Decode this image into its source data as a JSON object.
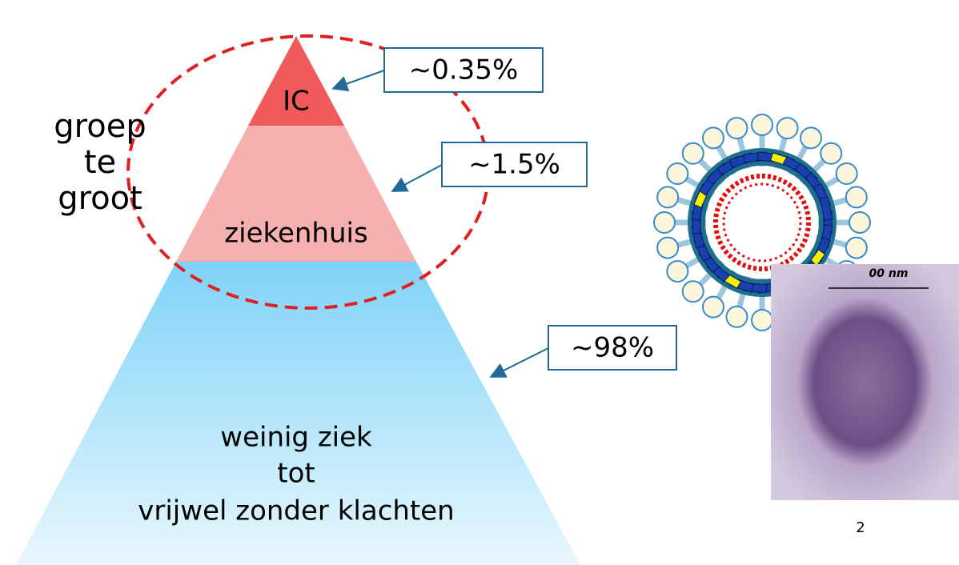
{
  "side_label": [
    "groep",
    "te",
    "groot"
  ],
  "pyramid": [
    {
      "label": [
        "IC"
      ],
      "callout": "~0.35%"
    },
    {
      "label": [
        "ziekenhuis"
      ],
      "callout": "~1.5%"
    },
    {
      "label": [
        "weinig ziek",
        "tot",
        "vrijwel zonder klachten"
      ],
      "callout": "~98%"
    }
  ],
  "image_scale_label": "00 nm",
  "page_number": "2"
}
